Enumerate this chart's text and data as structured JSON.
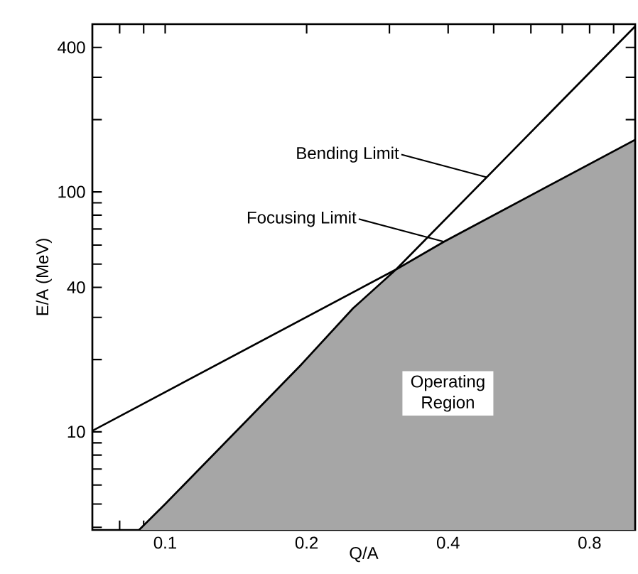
{
  "chart_data": {
    "type": "line",
    "xlabel": "Q/A",
    "ylabel": "E/A (MeV)",
    "log": "xy",
    "xlim": [
      0.07,
      1.0
    ],
    "ylim": [
      3.9,
      500
    ],
    "xticks": [
      {
        "value": 0.08,
        "label": null
      },
      {
        "value": 0.09,
        "label": null
      },
      0.1,
      0.2,
      {
        "value": 0.3,
        "label": null
      },
      0.4,
      {
        "value": 0.5,
        "label": null
      },
      {
        "value": 0.6,
        "label": null
      },
      {
        "value": 0.7,
        "label": null
      },
      0.8,
      {
        "value": 0.9,
        "label": null
      }
    ],
    "yticks": [
      {
        "value": 4,
        "label": null
      },
      {
        "value": 5,
        "label": null
      },
      {
        "value": 6,
        "label": null
      },
      {
        "value": 7,
        "label": null
      },
      {
        "value": 8,
        "label": null
      },
      {
        "value": 9,
        "label": null
      },
      10,
      {
        "value": 20,
        "label": null
      },
      {
        "value": 30,
        "label": null
      },
      40,
      {
        "value": 50,
        "label": null
      },
      {
        "value": 60,
        "label": null
      },
      {
        "value": 70,
        "label": null
      },
      {
        "value": 80,
        "label": null
      },
      {
        "value": 90,
        "label": null
      },
      100,
      {
        "value": 200,
        "label": null
      },
      {
        "value": 300,
        "label": null
      },
      400
    ],
    "series": [
      {
        "color": "#000000",
        "x": [
          0.07,
          0.31,
          1.0
        ],
        "values": [
          10.1,
          47.5,
          490
        ]
      },
      {
        "type": "area",
        "color": "#a6a6a6",
        "x": [
          0.088,
          0.1,
          0.194,
          0.251,
          0.31,
          0.392,
          1.0
        ],
        "values": [
          3.9,
          5.0,
          18.9,
          32.7,
          47.5,
          62,
          165
        ]
      }
    ],
    "annotations": [
      {
        "text": "Bending Limit",
        "x": 0.483,
        "y": 115
      },
      {
        "text": "Focusing Limit",
        "x": 0.392,
        "y": 62
      },
      "Operating Region"
    ],
    "grid": false,
    "marker": "none"
  }
}
